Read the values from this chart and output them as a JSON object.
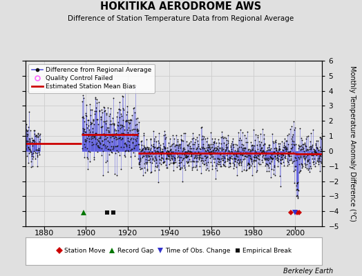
{
  "title": "HOKITIKA AERODROME AWS",
  "subtitle": "Difference of Station Temperature Data from Regional Average",
  "ylabel": "Monthly Temperature Anomaly Difference (°C)",
  "xlabel_years": [
    1880,
    1900,
    1920,
    1940,
    1960,
    1980,
    2000
  ],
  "ylim": [
    -5,
    6
  ],
  "xlim": [
    1871,
    2013
  ],
  "background_color": "#e0e0e0",
  "plot_bg_color": "#e8e8e8",
  "line_color": "#5555dd",
  "dot_color": "#111111",
  "bias_color": "#cc0000",
  "station_move_color": "#cc0000",
  "record_gap_color": "#007700",
  "obs_change_color": "#3333cc",
  "empirical_break_color": "#111111",
  "bias_segments": [
    {
      "start": 1871,
      "end": 1898,
      "value": 0.5
    },
    {
      "start": 1898,
      "end": 1925,
      "value": 1.1
    },
    {
      "start": 1925,
      "end": 2000,
      "value": -0.15
    },
    {
      "start": 2000,
      "end": 2013,
      "value": -0.2
    }
  ],
  "station_moves": [
    1998,
    2001,
    2002
  ],
  "record_gaps": [
    1899
  ],
  "obs_changes": [
    2000
  ],
  "empirical_breaks": [
    1910,
    1913
  ],
  "gap_start": 1878,
  "gap_end": 1898,
  "seed": 12345
}
